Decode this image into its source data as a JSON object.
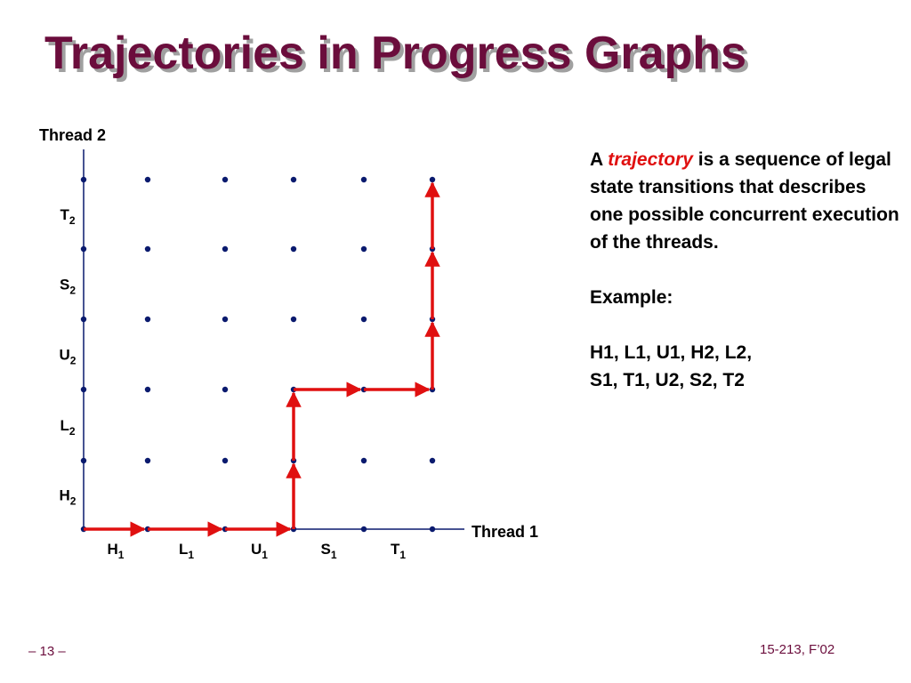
{
  "title": "Trajectories in Progress Graphs",
  "graph": {
    "y_axis_title": "Thread 2",
    "x_axis_title": "Thread 1",
    "x_steps": [
      {
        "letter": "H",
        "sub": "1"
      },
      {
        "letter": "L",
        "sub": "1"
      },
      {
        "letter": "U",
        "sub": "1"
      },
      {
        "letter": "S",
        "sub": "1"
      },
      {
        "letter": "T",
        "sub": "1"
      }
    ],
    "y_steps": [
      {
        "letter": "H",
        "sub": "2"
      },
      {
        "letter": "L",
        "sub": "2"
      },
      {
        "letter": "U",
        "sub": "2"
      },
      {
        "letter": "S",
        "sub": "2"
      },
      {
        "letter": "T",
        "sub": "2"
      }
    ],
    "trajectory": [
      {
        "from": [
          0,
          0
        ],
        "to": [
          1,
          0
        ]
      },
      {
        "from": [
          1,
          0
        ],
        "to": [
          2,
          0
        ]
      },
      {
        "from": [
          2,
          0
        ],
        "to": [
          3,
          0
        ]
      },
      {
        "from": [
          3,
          0
        ],
        "to": [
          3,
          1
        ]
      },
      {
        "from": [
          3,
          1
        ],
        "to": [
          3,
          2
        ]
      },
      {
        "from": [
          3,
          2
        ],
        "to": [
          4,
          2
        ]
      },
      {
        "from": [
          4,
          2
        ],
        "to": [
          5,
          2
        ]
      },
      {
        "from": [
          5,
          2
        ],
        "to": [
          5,
          3
        ]
      },
      {
        "from": [
          5,
          3
        ],
        "to": [
          5,
          4
        ]
      },
      {
        "from": [
          5,
          4
        ],
        "to": [
          5,
          5
        ]
      }
    ],
    "colors": {
      "dot": "#0a1a6e",
      "axis": "#0a1a6e",
      "arrow": "#e01010"
    }
  },
  "description": {
    "intro_a": "A",
    "term": "trajectory",
    "intro_rest": "is a sequence of legal state transitions that describes one possible concurrent execution of the threads.",
    "example_label": "Example:",
    "example_line1": "H1, L1, U1, H2, L2,",
    "example_line2": "S1, T1, U2, S2, T2"
  },
  "footer": {
    "page": "– 13 –",
    "course": "15-213, F’02"
  },
  "colors": {
    "title": "#6b0d3c",
    "title_shadow": "#a0a0a0",
    "accent": "#e01010"
  }
}
